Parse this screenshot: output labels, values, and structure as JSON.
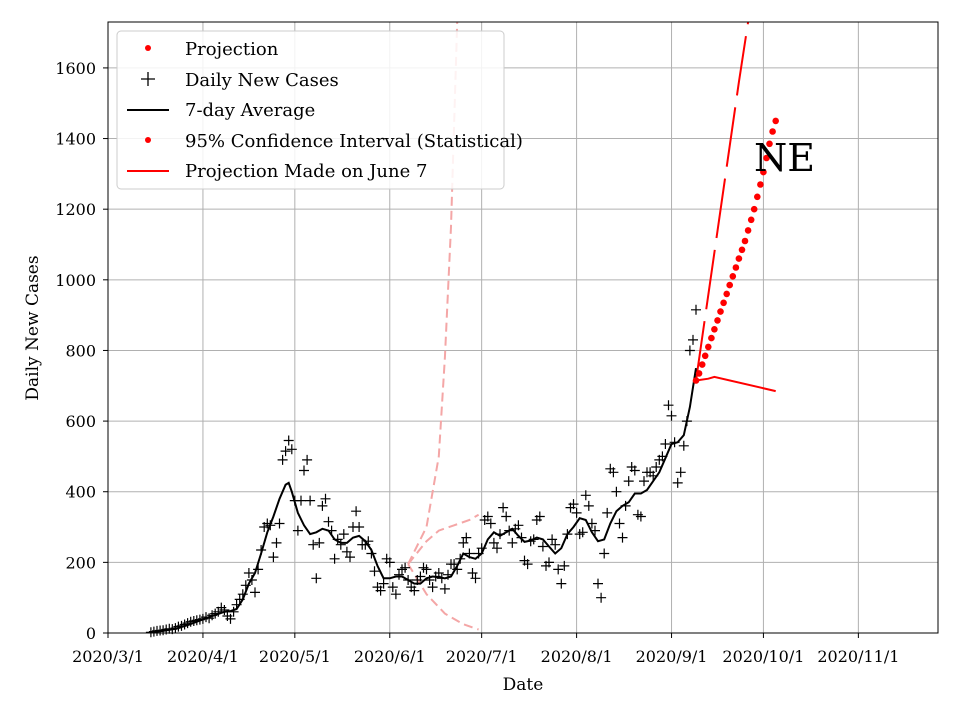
{
  "chart_data": {
    "type": "scatter",
    "title": "",
    "xlabel": "Date",
    "ylabel": "Daily New Cases",
    "annotation": "NE",
    "xlim": [
      "2020-03-01",
      "2020-11-27"
    ],
    "ylim": [
      0,
      1730
    ],
    "x_ticks": [
      {
        "date": "2020-03-01",
        "label": "2020/3/1"
      },
      {
        "date": "2020-04-01",
        "label": "2020/4/1"
      },
      {
        "date": "2020-05-01",
        "label": "2020/5/1"
      },
      {
        "date": "2020-06-01",
        "label": "2020/6/1"
      },
      {
        "date": "2020-07-01",
        "label": "2020/7/1"
      },
      {
        "date": "2020-08-01",
        "label": "2020/8/1"
      },
      {
        "date": "2020-09-01",
        "label": "2020/9/1"
      },
      {
        "date": "2020-10-01",
        "label": "2020/10/1"
      },
      {
        "date": "2020-11-01",
        "label": "2020/11/1"
      }
    ],
    "y_ticks": [
      0,
      200,
      400,
      600,
      800,
      1000,
      1200,
      1400,
      1600
    ],
    "grid": true,
    "legend_position": "top-left",
    "legend": [
      {
        "label": "Projection",
        "style": "red-dot"
      },
      {
        "label": "Daily New Cases",
        "style": "black-plus"
      },
      {
        "label": "7-day Average",
        "style": "black-line"
      },
      {
        "label": "95% Confidence Interval (Statistical)",
        "style": "red-dot"
      },
      {
        "label": "Projection Made on June 7",
        "style": "red-line"
      }
    ],
    "colors": {
      "projection": "#ff0000",
      "daily": "#000000",
      "average": "#000000",
      "june_projection": "#ff0000",
      "june_ci": "#f4a6a6"
    },
    "daily_new_cases": [
      [
        14,
        2
      ],
      [
        15,
        4
      ],
      [
        16,
        6
      ],
      [
        17,
        7
      ],
      [
        18,
        8
      ],
      [
        19,
        10
      ],
      [
        20,
        12
      ],
      [
        21,
        11
      ],
      [
        22,
        14
      ],
      [
        23,
        18
      ],
      [
        24,
        20
      ],
      [
        25,
        24
      ],
      [
        26,
        28
      ],
      [
        27,
        32
      ],
      [
        28,
        34
      ],
      [
        29,
        36
      ],
      [
        30,
        38
      ],
      [
        31,
        40
      ],
      [
        32,
        45
      ],
      [
        33,
        42
      ],
      [
        34,
        50
      ],
      [
        35,
        55
      ],
      [
        36,
        60
      ],
      [
        37,
        72
      ],
      [
        38,
        65
      ],
      [
        39,
        48
      ],
      [
        40,
        40
      ],
      [
        41,
        60
      ],
      [
        42,
        80
      ],
      [
        43,
        95
      ],
      [
        44,
        110
      ],
      [
        45,
        135
      ],
      [
        46,
        170
      ],
      [
        47,
        150
      ],
      [
        48,
        115
      ],
      [
        49,
        180
      ],
      [
        50,
        235
      ],
      [
        51,
        300
      ],
      [
        52,
        310
      ],
      [
        53,
        305
      ],
      [
        54,
        215
      ],
      [
        55,
        255
      ],
      [
        56,
        310
      ],
      [
        57,
        490
      ],
      [
        58,
        515
      ],
      [
        59,
        545
      ],
      [
        60,
        520
      ],
      [
        61,
        375
      ],
      [
        62,
        290
      ],
      [
        63,
        375
      ],
      [
        64,
        460
      ],
      [
        65,
        490
      ],
      [
        66,
        375
      ],
      [
        67,
        250
      ],
      [
        68,
        155
      ],
      [
        69,
        255
      ],
      [
        70,
        360
      ],
      [
        71,
        380
      ],
      [
        72,
        315
      ],
      [
        73,
        290
      ],
      [
        74,
        210
      ],
      [
        75,
        265
      ],
      [
        76,
        250
      ],
      [
        77,
        280
      ],
      [
        78,
        230
      ],
      [
        79,
        215
      ],
      [
        80,
        300
      ],
      [
        81,
        345
      ],
      [
        82,
        300
      ],
      [
        83,
        250
      ],
      [
        84,
        250
      ],
      [
        85,
        260
      ],
      [
        86,
        225
      ],
      [
        87,
        175
      ],
      [
        88,
        130
      ],
      [
        89,
        120
      ],
      [
        90,
        140
      ],
      [
        91,
        210
      ],
      [
        92,
        200
      ],
      [
        93,
        130
      ],
      [
        94,
        110
      ],
      [
        95,
        165
      ],
      [
        96,
        180
      ],
      [
        97,
        185
      ],
      [
        98,
        150
      ],
      [
        99,
        130
      ],
      [
        100,
        120
      ],
      [
        101,
        150
      ],
      [
        102,
        160
      ],
      [
        103,
        185
      ],
      [
        104,
        180
      ],
      [
        105,
        150
      ],
      [
        106,
        130
      ],
      [
        107,
        160
      ],
      [
        108,
        170
      ],
      [
        109,
        155
      ],
      [
        110,
        125
      ],
      [
        111,
        165
      ],
      [
        112,
        195
      ],
      [
        113,
        195
      ],
      [
        114,
        180
      ],
      [
        115,
        210
      ],
      [
        116,
        255
      ],
      [
        117,
        270
      ],
      [
        118,
        225
      ],
      [
        119,
        170
      ],
      [
        120,
        155
      ],
      [
        121,
        225
      ],
      [
        122,
        240
      ],
      [
        123,
        320
      ],
      [
        124,
        330
      ],
      [
        125,
        310
      ],
      [
        126,
        255
      ],
      [
        127,
        240
      ],
      [
        128,
        280
      ],
      [
        129,
        355
      ],
      [
        130,
        330
      ],
      [
        131,
        290
      ],
      [
        132,
        255
      ],
      [
        133,
        295
      ],
      [
        134,
        305
      ],
      [
        135,
        270
      ],
      [
        136,
        205
      ],
      [
        137,
        195
      ],
      [
        138,
        260
      ],
      [
        139,
        265
      ],
      [
        140,
        320
      ],
      [
        141,
        330
      ],
      [
        142,
        245
      ],
      [
        143,
        190
      ],
      [
        144,
        200
      ],
      [
        145,
        265
      ],
      [
        146,
        250
      ],
      [
        147,
        180
      ],
      [
        148,
        140
      ],
      [
        149,
        190
      ],
      [
        150,
        280
      ],
      [
        151,
        355
      ],
      [
        152,
        365
      ],
      [
        153,
        340
      ],
      [
        154,
        280
      ],
      [
        155,
        285
      ],
      [
        156,
        390
      ],
      [
        157,
        360
      ],
      [
        158,
        310
      ],
      [
        159,
        290
      ],
      [
        160,
        140
      ],
      [
        161,
        100
      ],
      [
        162,
        225
      ],
      [
        163,
        340
      ],
      [
        164,
        465
      ],
      [
        165,
        455
      ],
      [
        166,
        400
      ],
      [
        167,
        310
      ],
      [
        168,
        270
      ],
      [
        169,
        360
      ],
      [
        170,
        430
      ],
      [
        171,
        470
      ],
      [
        172,
        460
      ],
      [
        173,
        335
      ],
      [
        174,
        330
      ],
      [
        175,
        430
      ],
      [
        176,
        455
      ],
      [
        177,
        455
      ],
      [
        178,
        445
      ],
      [
        179,
        470
      ],
      [
        180,
        490
      ],
      [
        181,
        500
      ],
      [
        182,
        535
      ],
      [
        183,
        645
      ],
      [
        184,
        615
      ],
      [
        185,
        540
      ],
      [
        186,
        425
      ],
      [
        187,
        455
      ],
      [
        188,
        530
      ],
      [
        189,
        600
      ],
      [
        190,
        800
      ],
      [
        191,
        830
      ],
      [
        192,
        915
      ]
    ],
    "seven_day_average": [
      [
        14,
        2
      ],
      [
        18,
        6
      ],
      [
        22,
        12
      ],
      [
        26,
        22
      ],
      [
        30,
        35
      ],
      [
        34,
        48
      ],
      [
        38,
        60
      ],
      [
        40,
        62
      ],
      [
        42,
        68
      ],
      [
        44,
        95
      ],
      [
        46,
        140
      ],
      [
        48,
        170
      ],
      [
        50,
        225
      ],
      [
        52,
        285
      ],
      [
        54,
        330
      ],
      [
        56,
        380
      ],
      [
        58,
        420
      ],
      [
        59,
        425
      ],
      [
        60,
        400
      ],
      [
        62,
        340
      ],
      [
        64,
        305
      ],
      [
        66,
        280
      ],
      [
        68,
        285
      ],
      [
        70,
        295
      ],
      [
        72,
        290
      ],
      [
        74,
        265
      ],
      [
        76,
        255
      ],
      [
        78,
        255
      ],
      [
        80,
        270
      ],
      [
        82,
        275
      ],
      [
        84,
        260
      ],
      [
        86,
        235
      ],
      [
        88,
        190
      ],
      [
        90,
        155
      ],
      [
        92,
        155
      ],
      [
        94,
        160
      ],
      [
        96,
        160
      ],
      [
        98,
        150
      ],
      [
        100,
        140
      ],
      [
        102,
        140
      ],
      [
        104,
        155
      ],
      [
        106,
        160
      ],
      [
        108,
        158
      ],
      [
        110,
        155
      ],
      [
        112,
        160
      ],
      [
        114,
        190
      ],
      [
        116,
        225
      ],
      [
        118,
        215
      ],
      [
        120,
        210
      ],
      [
        122,
        225
      ],
      [
        124,
        265
      ],
      [
        126,
        285
      ],
      [
        128,
        275
      ],
      [
        130,
        285
      ],
      [
        132,
        295
      ],
      [
        134,
        275
      ],
      [
        136,
        258
      ],
      [
        138,
        262
      ],
      [
        140,
        270
      ],
      [
        142,
        265
      ],
      [
        144,
        245
      ],
      [
        146,
        225
      ],
      [
        148,
        240
      ],
      [
        150,
        280
      ],
      [
        152,
        300
      ],
      [
        154,
        325
      ],
      [
        156,
        320
      ],
      [
        158,
        285
      ],
      [
        160,
        260
      ],
      [
        162,
        265
      ],
      [
        164,
        310
      ],
      [
        166,
        345
      ],
      [
        168,
        360
      ],
      [
        170,
        370
      ],
      [
        172,
        395
      ],
      [
        174,
        395
      ],
      [
        176,
        405
      ],
      [
        178,
        430
      ],
      [
        180,
        455
      ],
      [
        182,
        495
      ],
      [
        184,
        535
      ],
      [
        186,
        540
      ],
      [
        188,
        560
      ],
      [
        190,
        640
      ],
      [
        192,
        750
      ]
    ],
    "projection": [
      [
        192,
        715
      ],
      [
        193,
        735
      ],
      [
        194,
        760
      ],
      [
        195,
        785
      ],
      [
        196,
        810
      ],
      [
        197,
        835
      ],
      [
        198,
        860
      ],
      [
        199,
        885
      ],
      [
        200,
        910
      ],
      [
        201,
        935
      ],
      [
        202,
        960
      ],
      [
        203,
        985
      ],
      [
        204,
        1010
      ],
      [
        205,
        1035
      ],
      [
        206,
        1060
      ],
      [
        207,
        1085
      ],
      [
        208,
        1110
      ],
      [
        209,
        1140
      ],
      [
        210,
        1170
      ],
      [
        211,
        1200
      ],
      [
        212,
        1235
      ],
      [
        213,
        1270
      ],
      [
        214,
        1305
      ],
      [
        215,
        1345
      ],
      [
        216,
        1385
      ],
      [
        217,
        1420
      ],
      [
        218,
        1450
      ]
    ],
    "confidence_interval": {
      "upper": [
        [
          192,
          715
        ],
        [
          206,
          1560
        ],
        [
          209,
          1730
        ]
      ],
      "lower": [
        [
          192,
          715
        ],
        [
          196,
          720
        ],
        [
          198,
          725
        ],
        [
          218,
          685
        ]
      ]
    },
    "june7_projection": {
      "upper": [
        [
          98,
          195
        ],
        [
          104,
          260
        ],
        [
          108,
          290
        ],
        [
          113,
          305
        ],
        [
          118,
          320
        ],
        [
          121,
          335
        ]
      ],
      "lower": [
        [
          98,
          195
        ],
        [
          104,
          110
        ],
        [
          110,
          55
        ],
        [
          116,
          25
        ],
        [
          121,
          10
        ]
      ],
      "upper_ci": [
        [
          98,
          195
        ],
        [
          104,
          300
        ],
        [
          108,
          500
        ],
        [
          110,
          780
        ],
        [
          112,
          1150
        ],
        [
          114,
          1730
        ]
      ]
    }
  }
}
